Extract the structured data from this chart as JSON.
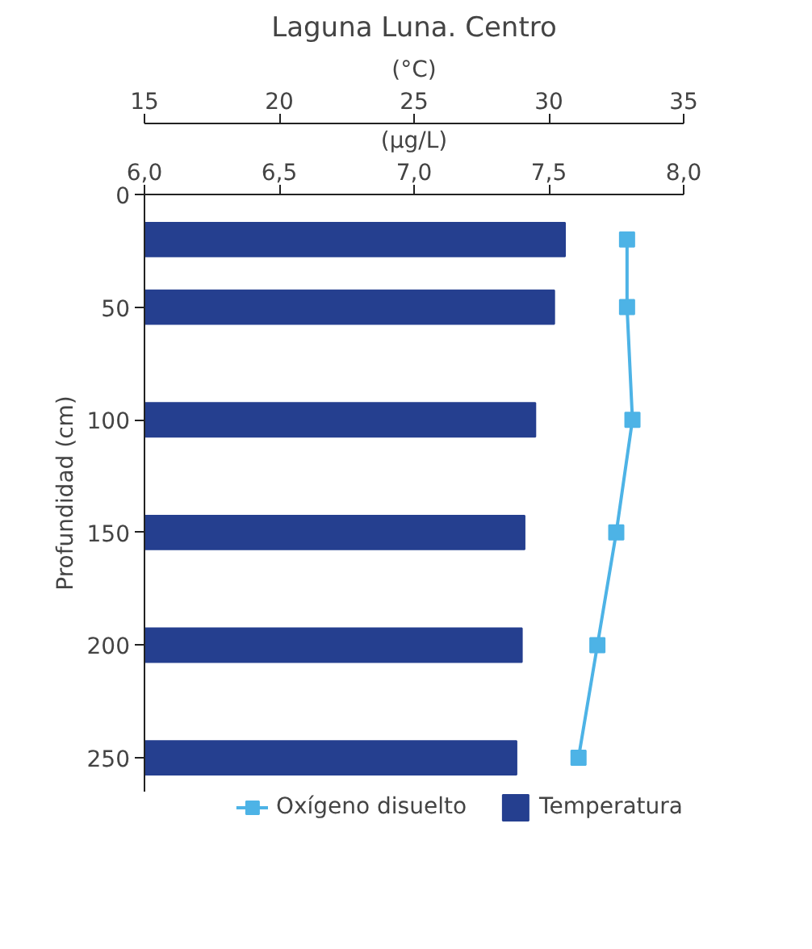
{
  "chart_data": {
    "type": "bar",
    "orientation": "horizontal",
    "title": "Laguna Luna. Centro",
    "ylabel": "Profundidad (cm)",
    "xlabel": "(°C)",
    "x2label": "(µg/L)",
    "xlim": [
      15,
      35
    ],
    "xticks": [
      15,
      20,
      25,
      30,
      35
    ],
    "x2lim": [
      6.0,
      8.0
    ],
    "x2ticks": [
      {
        "value": 6.0,
        "label": "6,0"
      },
      {
        "value": 6.5,
        "label": "6,5"
      },
      {
        "value": 7.0,
        "label": "7,0"
      },
      {
        "value": 7.5,
        "label": "7,5"
      },
      {
        "value": 8.0,
        "label": "8,0"
      }
    ],
    "ylim": [
      265,
      0
    ],
    "yticks": [
      0,
      50,
      100,
      150,
      200,
      250
    ],
    "legend": "bottom",
    "series": [
      {
        "name": "Temperatura",
        "color": "#253f8f",
        "x": [
          20,
          50,
          100,
          150,
          200,
          250
        ],
        "values": [
          30.6,
          30.2,
          29.5,
          29.1,
          29.0,
          28.8
        ]
      },
      {
        "name": "Oxígeno disuelto",
        "type": "line",
        "axis": "x2",
        "marker": "square",
        "line_style": "solid",
        "color": "#4db3e6",
        "x": [
          20,
          50,
          100,
          150,
          200,
          250
        ],
        "values": [
          7.79,
          7.79,
          7.81,
          7.75,
          7.68,
          7.61
        ]
      }
    ]
  }
}
